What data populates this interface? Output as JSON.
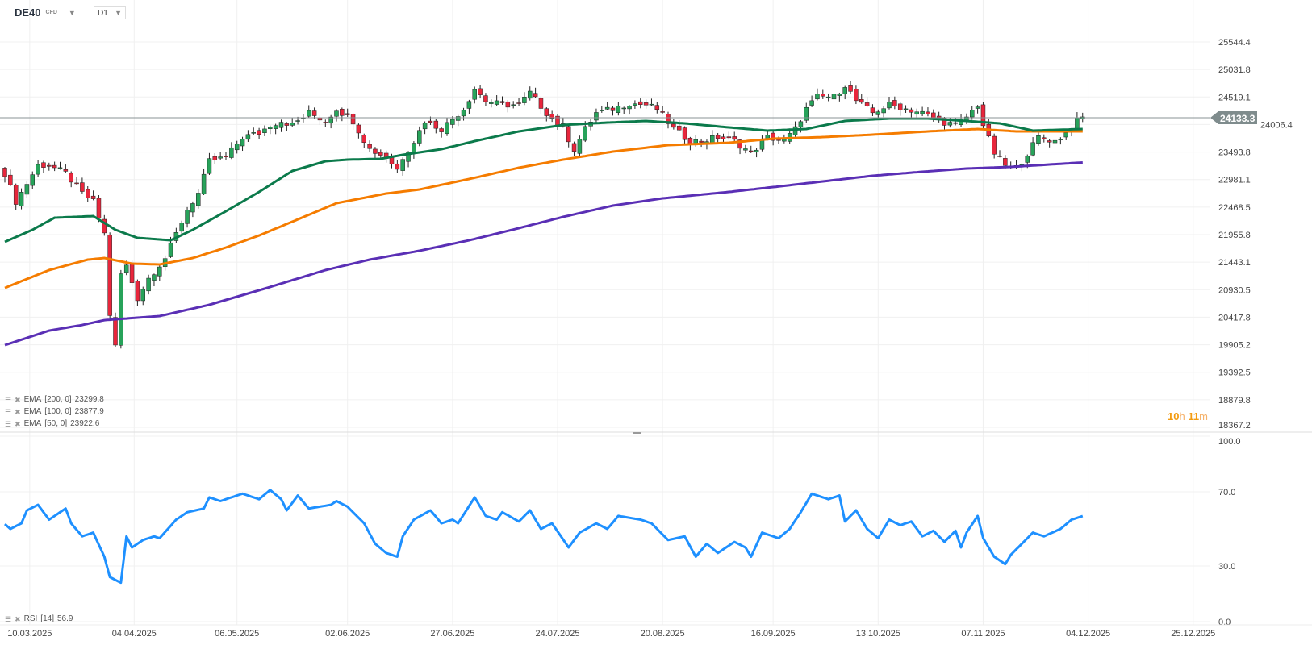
{
  "header": {
    "symbol": "DE40",
    "instrument_type": "CFD",
    "timeframe": "D1"
  },
  "last_price": "24133.3",
  "hidden_price_label": "24006.4",
  "countdown": {
    "hours": "10",
    "h": "h",
    "minutes": "11",
    "m": "m"
  },
  "legends": [
    {
      "label": "EMA",
      "params": "[200,  0]",
      "value": "23299.8"
    },
    {
      "label": "EMA",
      "params": "[100,  0]",
      "value": "23877.9"
    },
    {
      "label": "EMA",
      "params": "[50,  0]",
      "value": "23922.6"
    }
  ],
  "rsi_legend": {
    "label": "RSI",
    "params": "[14]",
    "value": "56.9"
  },
  "colors": {
    "up": "#27a35a",
    "down": "#e8263c",
    "ema50": "#0b7a4b",
    "ema100": "#f57c00",
    "ema200": "#5a2fb5",
    "rsi": "#1e90ff",
    "price_tag": "#7f8c8d"
  },
  "chart_data": {
    "type": "candlestick",
    "price_axis": [
      "25544.4",
      "25031.8",
      "24519.1",
      "24006.4",
      "23493.8",
      "22981.1",
      "22468.5",
      "21955.8",
      "21443.1",
      "20930.5",
      "20417.8",
      "19905.2",
      "19392.5",
      "18879.8",
      "18367.2"
    ],
    "ylim": [
      18367.2,
      25544.4
    ],
    "x_labels": [
      {
        "i": 4.5,
        "t": "10.03.2025"
      },
      {
        "i": 23.4,
        "t": "04.04.2025"
      },
      {
        "i": 42,
        "t": "06.05.2025"
      },
      {
        "i": 62,
        "t": "02.06.2025"
      },
      {
        "i": 81,
        "t": "27.06.2025"
      },
      {
        "i": 100,
        "t": "24.07.2025"
      },
      {
        "i": 119,
        "t": "20.08.2025"
      },
      {
        "i": 139,
        "t": "16.09.2025"
      },
      {
        "i": 158,
        "t": "13.10.2025"
      },
      {
        "i": 177,
        "t": "07.11.2025"
      },
      {
        "i": 196,
        "t": "04.12.2025"
      },
      {
        "i": 215,
        "t": "25.12.2025"
      }
    ],
    "n_candles": 196,
    "close_keypoints": [
      [
        0,
        23097
      ],
      [
        2,
        22571
      ],
      [
        6,
        23247
      ],
      [
        8,
        23247
      ],
      [
        11,
        23097
      ],
      [
        14,
        22721
      ],
      [
        16,
        22571
      ],
      [
        18,
        21970
      ],
      [
        19,
        20469
      ],
      [
        20,
        19868
      ],
      [
        21,
        21220
      ],
      [
        22,
        21370
      ],
      [
        24,
        20769
      ],
      [
        26,
        21145
      ],
      [
        29,
        21520
      ],
      [
        31,
        21970
      ],
      [
        33,
        22421
      ],
      [
        35,
        22721
      ],
      [
        37,
        23322
      ],
      [
        40,
        23397
      ],
      [
        43,
        23772
      ],
      [
        46,
        23847
      ],
      [
        48,
        23998
      ],
      [
        50,
        24073
      ],
      [
        52,
        23998
      ],
      [
        55,
        24223
      ],
      [
        58,
        24073
      ],
      [
        60,
        24298
      ],
      [
        63,
        24073
      ],
      [
        66,
        23547
      ],
      [
        69,
        23397
      ],
      [
        71,
        23172
      ],
      [
        72,
        23397
      ],
      [
        74,
        23697
      ],
      [
        76,
        24073
      ],
      [
        79,
        23923
      ],
      [
        83,
        24298
      ],
      [
        85,
        24673
      ],
      [
        87,
        24448
      ],
      [
        90,
        24373
      ],
      [
        93,
        24373
      ],
      [
        95,
        24598
      ],
      [
        98,
        24223
      ],
      [
        101,
        23923
      ],
      [
        103,
        23547
      ],
      [
        105,
        23923
      ],
      [
        107,
        24223
      ],
      [
        110,
        24298
      ],
      [
        113,
        24403
      ],
      [
        116,
        24373
      ],
      [
        118,
        24298
      ],
      [
        121,
        23923
      ],
      [
        124,
        23697
      ],
      [
        126,
        23697
      ],
      [
        129,
        23772
      ],
      [
        132,
        23697
      ],
      [
        135,
        23472
      ],
      [
        138,
        23772
      ],
      [
        141,
        23697
      ],
      [
        143,
        23923
      ],
      [
        145,
        24298
      ],
      [
        147,
        24523
      ],
      [
        150,
        24523
      ],
      [
        152,
        24748
      ],
      [
        154,
        24448
      ],
      [
        157,
        24223
      ],
      [
        160,
        24373
      ],
      [
        163,
        24298
      ],
      [
        166,
        24223
      ],
      [
        169,
        24073
      ],
      [
        172,
        23998
      ],
      [
        174,
        24148
      ],
      [
        176,
        24373
      ],
      [
        177,
        23998
      ],
      [
        179,
        23472
      ],
      [
        181,
        23247
      ],
      [
        183,
        23172
      ],
      [
        185,
        23472
      ],
      [
        187,
        23772
      ],
      [
        190,
        23697
      ],
      [
        192,
        23847
      ],
      [
        194,
        24073
      ],
      [
        195,
        24133.3
      ]
    ],
    "ema50": [
      [
        0,
        21820
      ],
      [
        5,
        22046
      ],
      [
        9,
        22271
      ],
      [
        16,
        22301
      ],
      [
        20,
        22046
      ],
      [
        24,
        21895
      ],
      [
        30,
        21850
      ],
      [
        34,
        22046
      ],
      [
        40,
        22391
      ],
      [
        46,
        22751
      ],
      [
        52,
        23142
      ],
      [
        58,
        23322
      ],
      [
        62,
        23352
      ],
      [
        68,
        23367
      ],
      [
        72,
        23442
      ],
      [
        79,
        23547
      ],
      [
        85,
        23697
      ],
      [
        93,
        23878
      ],
      [
        101,
        23998
      ],
      [
        109,
        24043
      ],
      [
        116,
        24073
      ],
      [
        123,
        24028
      ],
      [
        131,
        23953
      ],
      [
        138,
        23893
      ],
      [
        145,
        23923
      ],
      [
        152,
        24073
      ],
      [
        160,
        24118
      ],
      [
        167,
        24118
      ],
      [
        174,
        24073
      ],
      [
        180,
        24028
      ],
      [
        186,
        23893
      ],
      [
        195,
        23922.6
      ]
    ],
    "ema100": [
      [
        0,
        20964
      ],
      [
        8,
        21295
      ],
      [
        15,
        21490
      ],
      [
        18,
        21520
      ],
      [
        23,
        21415
      ],
      [
        28,
        21400
      ],
      [
        34,
        21520
      ],
      [
        40,
        21715
      ],
      [
        46,
        21940
      ],
      [
        52,
        22196
      ],
      [
        60,
        22541
      ],
      [
        69,
        22721
      ],
      [
        75,
        22796
      ],
      [
        84,
        22992
      ],
      [
        93,
        23202
      ],
      [
        101,
        23352
      ],
      [
        110,
        23502
      ],
      [
        120,
        23622
      ],
      [
        131,
        23667
      ],
      [
        139,
        23742
      ],
      [
        148,
        23772
      ],
      [
        157,
        23817
      ],
      [
        167,
        23878
      ],
      [
        176,
        23923
      ],
      [
        183,
        23878
      ],
      [
        195,
        23877.9
      ]
    ],
    "ema200": [
      [
        0,
        19898
      ],
      [
        8,
        20168
      ],
      [
        14,
        20273
      ],
      [
        18,
        20363
      ],
      [
        28,
        20439
      ],
      [
        37,
        20649
      ],
      [
        46,
        20919
      ],
      [
        58,
        21295
      ],
      [
        66,
        21490
      ],
      [
        75,
        21655
      ],
      [
        84,
        21850
      ],
      [
        93,
        22076
      ],
      [
        101,
        22286
      ],
      [
        110,
        22496
      ],
      [
        119,
        22631
      ],
      [
        131,
        22751
      ],
      [
        139,
        22841
      ],
      [
        148,
        22947
      ],
      [
        157,
        23052
      ],
      [
        166,
        23127
      ],
      [
        174,
        23187
      ],
      [
        182,
        23217
      ],
      [
        195,
        23299.8
      ]
    ],
    "rsi_axis": [
      "100.0",
      "70.0",
      "30.0",
      "0.0"
    ],
    "rsi": [
      [
        0,
        52.6
      ],
      [
        1,
        50
      ],
      [
        3,
        53
      ],
      [
        4,
        60
      ],
      [
        6,
        63
      ],
      [
        8,
        55
      ],
      [
        11,
        61
      ],
      [
        12,
        53
      ],
      [
        14,
        46
      ],
      [
        16,
        48
      ],
      [
        18,
        35
      ],
      [
        19,
        24
      ],
      [
        21,
        21
      ],
      [
        22,
        46
      ],
      [
        23,
        40
      ],
      [
        25,
        44
      ],
      [
        27,
        46
      ],
      [
        28,
        45
      ],
      [
        31,
        55
      ],
      [
        33,
        59
      ],
      [
        36,
        61
      ],
      [
        37,
        67
      ],
      [
        39,
        65
      ],
      [
        43,
        69
      ],
      [
        46,
        66
      ],
      [
        48,
        71
      ],
      [
        50,
        66
      ],
      [
        51,
        60
      ],
      [
        53,
        68
      ],
      [
        55,
        61
      ],
      [
        59,
        63
      ],
      [
        60,
        65
      ],
      [
        62,
        62
      ],
      [
        65,
        53
      ],
      [
        67,
        42
      ],
      [
        69,
        37
      ],
      [
        71,
        35
      ],
      [
        72,
        46
      ],
      [
        74,
        55
      ],
      [
        77,
        60
      ],
      [
        79,
        53
      ],
      [
        81,
        55
      ],
      [
        82,
        53
      ],
      [
        85,
        67
      ],
      [
        87,
        57
      ],
      [
        89,
        55
      ],
      [
        90,
        59
      ],
      [
        93,
        54
      ],
      [
        95,
        60
      ],
      [
        97,
        50
      ],
      [
        99,
        53
      ],
      [
        102,
        40
      ],
      [
        104,
        48
      ],
      [
        107,
        53
      ],
      [
        109,
        50
      ],
      [
        111,
        57
      ],
      [
        115,
        55
      ],
      [
        117,
        53
      ],
      [
        120,
        44
      ],
      [
        123,
        46
      ],
      [
        125,
        35
      ],
      [
        127,
        42
      ],
      [
        129,
        37
      ],
      [
        132,
        43
      ],
      [
        134,
        40
      ],
      [
        135,
        35
      ],
      [
        137,
        48
      ],
      [
        140,
        45
      ],
      [
        142,
        50
      ],
      [
        144,
        59
      ],
      [
        146,
        69
      ],
      [
        149,
        66
      ],
      [
        151,
        68
      ],
      [
        152,
        54
      ],
      [
        154,
        60
      ],
      [
        156,
        50
      ],
      [
        158,
        45
      ],
      [
        160,
        55
      ],
      [
        162,
        52
      ],
      [
        164,
        54
      ],
      [
        166,
        46
      ],
      [
        168,
        49
      ],
      [
        170,
        43
      ],
      [
        172,
        49
      ],
      [
        173,
        40
      ],
      [
        174,
        48
      ],
      [
        176,
        57
      ],
      [
        177,
        45
      ],
      [
        179,
        35
      ],
      [
        181,
        31
      ],
      [
        182,
        36
      ],
      [
        184,
        42
      ],
      [
        186,
        48
      ],
      [
        188,
        46
      ],
      [
        191,
        50
      ],
      [
        193,
        55
      ],
      [
        195,
        56.9
      ]
    ]
  }
}
